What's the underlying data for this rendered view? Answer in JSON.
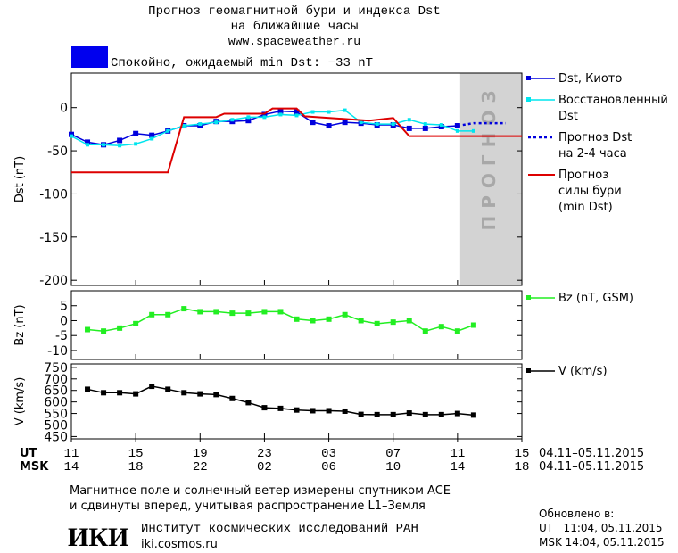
{
  "header": {
    "title": [
      "Прогноз геомагнитной бури и индекса Dst",
      "на ближайшие часы",
      "www.spaceweather.ru"
    ],
    "status": "Спокойно, ожидаемый min Dst: −33 nT",
    "status_color": "#0000ee"
  },
  "chart_data": [
    {
      "type": "line",
      "y_label": "Dst (nT)",
      "xlim": [
        0,
        28
      ],
      "ylim": [
        -206,
        40
      ],
      "yticks": [
        0,
        -50,
        -100,
        -150,
        -200
      ],
      "forecast_label": "ПРОГНОЗ",
      "series": [
        {
          "name": "Dst, Киото",
          "color": "#0000dd",
          "marker": "square",
          "x": [
            0,
            1,
            2,
            3,
            4,
            5,
            6,
            7,
            8,
            9,
            10,
            11,
            12,
            13,
            14,
            15,
            16,
            17,
            18,
            19,
            20,
            21,
            22,
            23,
            24
          ],
          "values": [
            -31,
            -40,
            -43,
            -38,
            -30,
            -32,
            -27,
            -21,
            -21,
            -16,
            -16,
            -15,
            -8,
            -4,
            -5,
            -17,
            -21,
            -17,
            -18,
            -20,
            -20,
            -24,
            -24,
            -22,
            -21
          ]
        },
        {
          "name": "Восстановленный\nDst",
          "color": "#00e5ee",
          "marker": "small",
          "x": [
            0,
            1,
            2,
            3,
            4,
            5,
            6,
            7,
            8,
            9,
            10,
            11,
            12,
            13,
            14,
            15,
            16,
            17,
            18,
            19,
            20,
            21,
            22,
            23,
            24,
            25
          ],
          "values": [
            -33,
            -43,
            -43,
            -44,
            -42,
            -36,
            -27,
            -21,
            -19,
            -17,
            -14,
            -11,
            -11,
            -8,
            -9,
            -5,
            -5,
            -3,
            -17,
            -19,
            -19,
            -14,
            -19,
            -20,
            -27,
            -27
          ]
        },
        {
          "name": "Прогноз Dst\nна 2-4 часа",
          "color": "#0000dd",
          "style": "dotted",
          "x": [
            24,
            25,
            26,
            27
          ],
          "values": [
            -21,
            -18,
            -18,
            -18
          ]
        },
        {
          "name": "Прогноз\nсилы бури\n(min Dst)",
          "color": "#dd0000",
          "x": [
            0,
            6,
            7,
            9,
            9.5,
            12,
            12.5,
            14,
            14.5,
            18.5,
            20,
            21,
            28
          ],
          "values": [
            -75,
            -75,
            -11,
            -11,
            -7,
            -7,
            -1,
            -1,
            -10,
            -15,
            -12,
            -33,
            -33
          ]
        }
      ]
    },
    {
      "type": "line",
      "y_label": "Bz (nT)",
      "xlim": [
        0,
        28
      ],
      "ylim": [
        -13,
        10
      ],
      "yticks": [
        5,
        0,
        -5,
        -10
      ],
      "series": [
        {
          "name": "Bz (nT, GSM)",
          "color": "#22ee22",
          "marker": "square",
          "x": [
            1,
            2,
            3,
            4,
            5,
            6,
            7,
            8,
            9,
            10,
            11,
            12,
            13,
            14,
            15,
            16,
            17,
            18,
            19,
            20,
            21,
            22,
            23,
            24,
            25
          ],
          "values": [
            -3,
            -3.5,
            -2.5,
            -1,
            2,
            2,
            4,
            3,
            3,
            2.5,
            2.5,
            3,
            3,
            0.5,
            0,
            0.5,
            2,
            0,
            -1,
            -0.5,
            0,
            -3.5,
            -2,
            -3.5,
            -1.5
          ]
        }
      ]
    },
    {
      "type": "line",
      "y_label": "V (km/s)",
      "xlim": [
        0,
        28
      ],
      "ylim": [
        440,
        765
      ],
      "yticks": [
        450,
        500,
        550,
        600,
        650,
        700,
        750
      ],
      "xticks": [
        {
          "value": 0,
          "label": "11"
        },
        {
          "value": 4,
          "label": "15"
        },
        {
          "value": 8,
          "label": "19"
        },
        {
          "value": 12,
          "label": "23"
        },
        {
          "value": 16,
          "label": "03"
        },
        {
          "value": 20,
          "label": "07"
        },
        {
          "value": 24,
          "label": "11"
        },
        {
          "value": 28,
          "label": "15"
        }
      ],
      "x2ticks": [
        {
          "value": 0,
          "label": "14"
        },
        {
          "value": 4,
          "label": "18"
        },
        {
          "value": 8,
          "label": "22"
        },
        {
          "value": 12,
          "label": "02"
        },
        {
          "value": 16,
          "label": "06"
        },
        {
          "value": 20,
          "label": "10"
        },
        {
          "value": 24,
          "label": "14"
        },
        {
          "value": 28,
          "label": "18"
        }
      ],
      "x_rows": [
        "UT",
        "MSK"
      ],
      "x_range_labels": [
        "04.11–05.11.2015",
        "04.11–05.11.2015"
      ],
      "series": [
        {
          "name": "V (km/s)",
          "color": "#000000",
          "marker": "square",
          "x": [
            1,
            2,
            3,
            4,
            5,
            6,
            7,
            8,
            9,
            10,
            11,
            12,
            13,
            14,
            15,
            16,
            17,
            18,
            19,
            20,
            21,
            22,
            23,
            24,
            25
          ],
          "values": [
            655,
            640,
            640,
            635,
            668,
            655,
            640,
            635,
            632,
            615,
            597,
            575,
            572,
            565,
            562,
            562,
            560,
            546,
            545,
            545,
            552,
            545,
            545,
            550,
            543
          ]
        }
      ]
    }
  ],
  "footer": {
    "note": [
      "Магнитное поле и солнечный ветер измерены спутником ACE",
      "и сдвинуты вперед, учитывая распространение L1–Земля"
    ],
    "updated": [
      "Обновлено в:",
      "UT   11:04, 05.11.2015",
      "MSK 14:04, 05.11.2015"
    ],
    "logo": "ИКИ",
    "institute": "Институт космических исследований РАН",
    "url": "iki.cosmos.ru"
  }
}
